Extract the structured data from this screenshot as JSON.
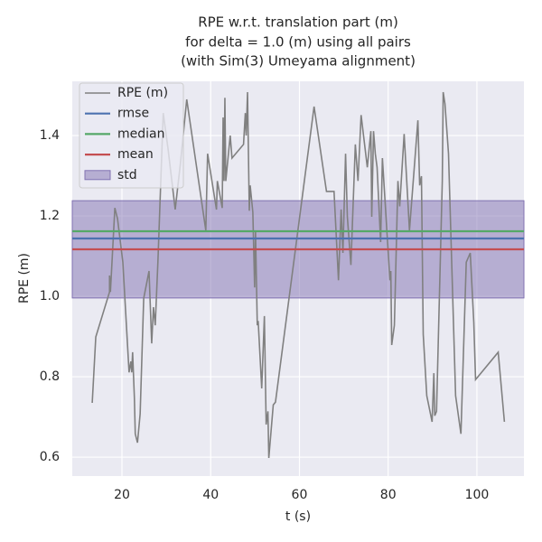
{
  "chart_data": {
    "type": "line",
    "title": [
      "RPE w.r.t. translation part (m)",
      "for delta = 1.0 (m) using all pairs",
      "(with Sim(3) Umeyama alignment)"
    ],
    "xlabel": "t (s)",
    "ylabel": "RPE (m)",
    "xlim": [
      8.8,
      110.6
    ],
    "ylim": [
      0.553,
      1.535
    ],
    "xticks": [
      20,
      40,
      60,
      80,
      100
    ],
    "yticks": [
      0.6,
      0.8,
      {
        "value": 1,
        "label": "1.0"
      },
      1.2,
      1.4
    ],
    "grid": true,
    "legend": "upper left",
    "series": [
      {
        "name": "RPE (m)",
        "color": "#808080",
        "x": [
          13.3,
          14.1,
          17.2,
          17.2,
          17.4,
          18.4,
          19.0,
          20.2,
          21.6,
          22.0,
          22.2,
          22.4,
          22.8,
          23.0,
          23.5,
          24.1,
          24.9,
          26.1,
          26.7,
          27.1,
          27.5,
          28.1,
          29.3,
          30.4,
          32.0,
          33.2,
          34.6,
          38.9,
          39.3,
          41.3,
          41.5,
          42.6,
          42.8,
          43.0,
          43.2,
          43.4,
          44.4,
          44.8,
          47.4,
          47.8,
          48.0,
          48.3,
          48.7,
          48.9,
          49.5,
          49.9,
          50.1,
          50.5,
          50.7,
          51.5,
          52.1,
          52.5,
          52.9,
          53.1,
          54.1,
          54.6,
          63.3,
          66.1,
          67.8,
          68.8,
          69.4,
          69.8,
          70.4,
          70.8,
          71.6,
          72.6,
          73.2,
          73.9,
          75.3,
          76.1,
          76.3,
          76.7,
          77.1,
          77.5,
          78.3,
          78.7,
          80.4,
          80.6,
          80.8,
          81.4,
          82.2,
          82.6,
          83.6,
          84.8,
          86.7,
          87.1,
          87.5,
          87.9,
          88.7,
          89.9,
          90.3,
          90.5,
          90.9,
          92.2,
          92.4,
          92.8,
          93.6,
          95.2,
          96.4,
          97.6,
          98.5,
          99.3,
          99.7,
          104.8,
          106.2
        ],
        "values": [
          0.735,
          0.899,
          1.011,
          1.052,
          1.011,
          1.22,
          1.193,
          1.085,
          0.811,
          0.838,
          0.811,
          0.861,
          0.748,
          0.658,
          0.636,
          0.708,
          0.995,
          1.063,
          0.883,
          0.973,
          0.928,
          1.085,
          1.456,
          1.366,
          1.216,
          1.333,
          1.49,
          1.164,
          1.355,
          1.216,
          1.287,
          1.22,
          1.445,
          1.287,
          1.494,
          1.287,
          1.4,
          1.344,
          1.378,
          1.456,
          1.4,
          1.508,
          1.213,
          1.276,
          1.209,
          1.022,
          1.164,
          0.928,
          0.939,
          0.771,
          0.951,
          0.681,
          0.714,
          0.598,
          0.73,
          0.737,
          1.472,
          1.261,
          1.261,
          1.04,
          1.216,
          1.108,
          1.355,
          1.198,
          1.078,
          1.378,
          1.287,
          1.451,
          1.321,
          1.411,
          1.198,
          1.411,
          1.355,
          1.321,
          1.135,
          1.344,
          1.04,
          1.063,
          0.879,
          0.928,
          1.287,
          1.224,
          1.404,
          1.164,
          1.438,
          1.276,
          1.299,
          0.906,
          0.753,
          0.688,
          0.809,
          0.703,
          0.714,
          1.287,
          1.508,
          1.479,
          1.355,
          0.753,
          0.658,
          1.085,
          1.108,
          0.935,
          0.793,
          0.861,
          0.688
        ]
      }
    ],
    "hlines": [
      {
        "name": "rmse",
        "color": "#4c72b0",
        "value": 1.144
      },
      {
        "name": "median",
        "color": "#55a868",
        "value": 1.162
      },
      {
        "name": "mean",
        "color": "#c44e52",
        "value": 1.117
      }
    ],
    "band": {
      "name": "std",
      "color": "#8172b2",
      "value": 0.121
    }
  }
}
